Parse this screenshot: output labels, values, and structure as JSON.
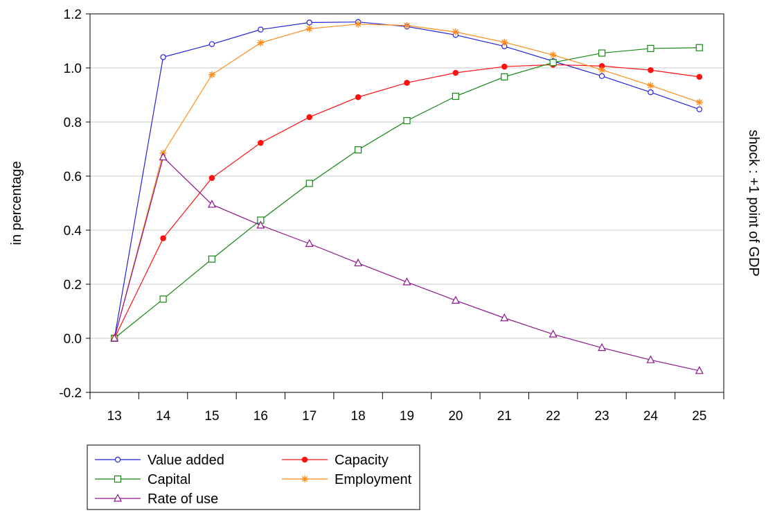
{
  "chart_data": {
    "type": "line",
    "title": "",
    "xlabel": "",
    "ylabel": "in percentage",
    "ylabel_right": "shock : +1 point of GDP",
    "x": [
      "13",
      "14",
      "15",
      "16",
      "17",
      "18",
      "19",
      "20",
      "21",
      "22",
      "23",
      "24",
      "25"
    ],
    "ylim": [
      -0.2,
      1.2
    ],
    "yticks": [
      "-0.2",
      "0.0",
      "0.2",
      "0.4",
      "0.6",
      "0.8",
      "1.0",
      "1.2"
    ],
    "grid": true,
    "legend_position": "bottom-left",
    "series": [
      {
        "name": "Value added",
        "color": "#2222dd",
        "marker": "circle-open",
        "values": [
          0.0,
          1.04,
          1.088,
          1.142,
          1.168,
          1.17,
          1.153,
          1.122,
          1.08,
          1.025,
          0.97,
          0.91,
          0.847
        ]
      },
      {
        "name": "Capacity",
        "color": "#ff1111",
        "marker": "circle-filled",
        "values": [
          0.0,
          0.37,
          0.593,
          0.723,
          0.818,
          0.892,
          0.945,
          0.982,
          1.005,
          1.012,
          1.007,
          0.992,
          0.967
        ]
      },
      {
        "name": "Capital",
        "color": "#118811",
        "marker": "square-open",
        "values": [
          0.0,
          0.145,
          0.293,
          0.437,
          0.573,
          0.697,
          0.805,
          0.895,
          0.967,
          1.02,
          1.055,
          1.072,
          1.075
        ]
      },
      {
        "name": "Employment",
        "color": "#ff8c1a",
        "marker": "asterisk",
        "values": [
          0.0,
          0.685,
          0.975,
          1.093,
          1.145,
          1.162,
          1.157,
          1.133,
          1.095,
          1.048,
          0.993,
          0.935,
          0.873
        ]
      },
      {
        "name": "Rate of use",
        "color": "#8e138e",
        "marker": "triangle-open",
        "values": [
          0.0,
          0.67,
          0.495,
          0.418,
          0.35,
          0.278,
          0.208,
          0.14,
          0.075,
          0.015,
          -0.035,
          -0.08,
          -0.12
        ]
      }
    ]
  }
}
